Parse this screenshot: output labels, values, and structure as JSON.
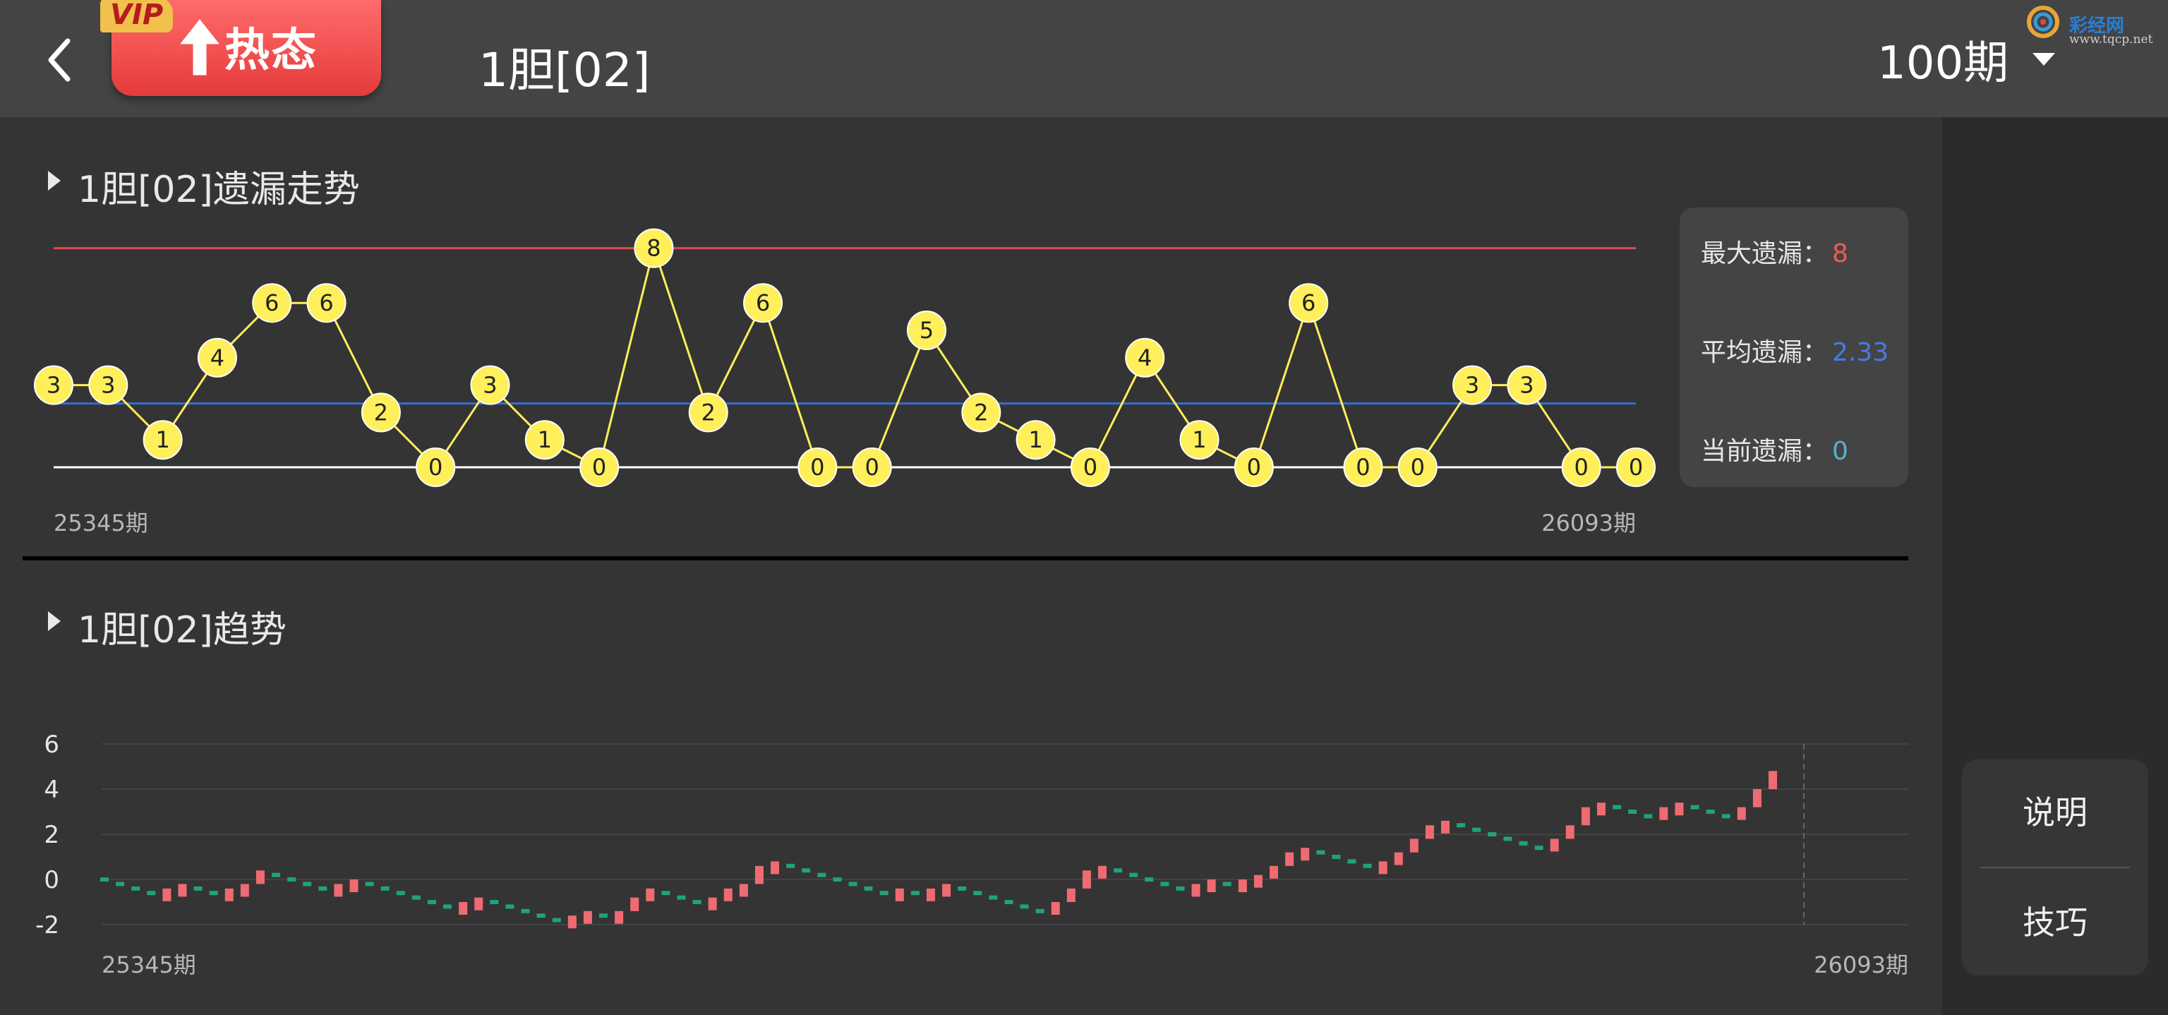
{
  "header": {
    "hot_label": "热态",
    "vip_label": "VIP",
    "title": "1胆[02]",
    "period_label": "100期",
    "logo_text": "彩经网",
    "logo_url": "www.tqcp.net"
  },
  "miss_section": {
    "title": "1胆[02]遗漏走势",
    "stats": {
      "max_label": "最大遗漏：",
      "max_value": "8",
      "avg_label": "平均遗漏：",
      "avg_value": "2.33",
      "cur_label": "当前遗漏：",
      "cur_value": "0"
    }
  },
  "trend_section": {
    "title": "1胆[02]趋势"
  },
  "side_menu": {
    "explain": "说明",
    "tips": "技巧"
  },
  "colors": {
    "max_line": "#e04a4a",
    "avg_line": "#3a6bd8",
    "node_fill": "#ffef5a",
    "up": "#ef6b73",
    "down": "#1fa37a",
    "max_value": "#ee5b5b",
    "avg_value": "#4a78e8",
    "cur_value": "#5ab0c8"
  },
  "chart_data": [
    {
      "type": "line",
      "x_start_label": "25345期",
      "x_end_label": "26093期",
      "max_line": 8,
      "avg_line": 2.33,
      "values": [
        3,
        3,
        1,
        4,
        6,
        6,
        2,
        0,
        3,
        1,
        0,
        8,
        2,
        6,
        0,
        0,
        5,
        2,
        1,
        0,
        4,
        1,
        0,
        6,
        0,
        0,
        3,
        3,
        0,
        0
      ]
    },
    {
      "type": "line",
      "x_start_label": "25345期",
      "x_end_label": "26093期",
      "ylim": [
        -2,
        6
      ],
      "yticks": [
        "6",
        "4",
        "2",
        "0",
        "-2"
      ],
      "values": [
        0,
        -0.2,
        -0.4,
        -0.6,
        -0.4,
        -0.2,
        -0.4,
        -0.6,
        -0.4,
        -0.2,
        0.4,
        0.2,
        0,
        -0.2,
        -0.4,
        -0.2,
        0,
        -0.2,
        -0.4,
        -0.6,
        -0.8,
        -1,
        -1.2,
        -1,
        -0.8,
        -1,
        -1.2,
        -1.4,
        -1.6,
        -1.8,
        -1.6,
        -1.4,
        -1.6,
        -1.4,
        -0.8,
        -0.4,
        -0.6,
        -0.8,
        -1,
        -0.8,
        -0.4,
        -0.2,
        0.6,
        0.8,
        0.6,
        0.4,
        0.2,
        0,
        -0.2,
        -0.4,
        -0.6,
        -0.4,
        -0.6,
        -0.4,
        -0.2,
        -0.4,
        -0.6,
        -0.8,
        -1,
        -1.2,
        -1.4,
        -1,
        -0.4,
        0.4,
        0.6,
        0.4,
        0.2,
        0,
        -0.2,
        -0.4,
        -0.2,
        0,
        -0.2,
        0,
        0.2,
        0.6,
        1.2,
        1.4,
        1.2,
        1,
        0.8,
        0.6,
        0.8,
        1.2,
        1.8,
        2.4,
        2.6,
        2.4,
        2.2,
        2,
        1.8,
        1.6,
        1.4,
        1.8,
        2.4,
        3.2,
        3.4,
        3.2,
        3,
        2.8,
        3.2,
        3.4,
        3.2,
        3,
        2.8,
        3.2,
        4,
        4.8
      ]
    }
  ]
}
